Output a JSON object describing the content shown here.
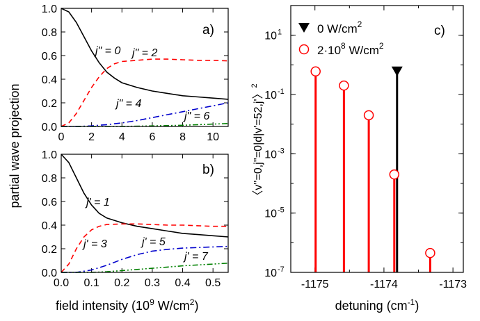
{
  "figure": {
    "ylabel_left": "partial wave projection",
    "xlabel_left": "field intensity (10",
    "xlabel_left_exp": "9",
    "xlabel_left_unit": " W/cm",
    "xlabel_left_unit_exp": "2",
    "xlabel_left_close": ")"
  },
  "colors": {
    "black": "#000000",
    "red": "#ff0000",
    "blue": "#0000cc",
    "green": "#008000"
  },
  "chart_data": [
    {
      "id": "a",
      "panel_label": "a)",
      "type": "line",
      "xlim": [
        0,
        11
      ],
      "ylim": [
        0,
        1.0
      ],
      "xticks": [
        0,
        2,
        4,
        6,
        8,
        10
      ],
      "yticks": [
        0.0,
        0.2,
        0.4,
        0.6,
        0.8,
        1.0
      ],
      "ytick_labels": [
        "0.0",
        "0.2",
        "0.4",
        "0.6",
        "0.8",
        "1.0"
      ],
      "series": [
        {
          "name": "j\" = 0",
          "style": "solid",
          "color": "#000000",
          "x": [
            0,
            0.5,
            1,
            1.5,
            2,
            2.5,
            3,
            3.5,
            4,
            5,
            6,
            7,
            8,
            9,
            10,
            11
          ],
          "y": [
            1.0,
            0.97,
            0.88,
            0.76,
            0.64,
            0.54,
            0.46,
            0.41,
            0.37,
            0.33,
            0.3,
            0.28,
            0.26,
            0.25,
            0.24,
            0.23
          ]
        },
        {
          "name": "j\" = 2",
          "style": "dash",
          "color": "#ff0000",
          "x": [
            0,
            0.5,
            1,
            1.5,
            2,
            2.5,
            3,
            3.5,
            4,
            5,
            6,
            7,
            8,
            9,
            10,
            11
          ],
          "y": [
            0.0,
            0.03,
            0.11,
            0.22,
            0.33,
            0.42,
            0.49,
            0.53,
            0.55,
            0.56,
            0.57,
            0.57,
            0.565,
            0.56,
            0.56,
            0.555
          ]
        },
        {
          "name": "j\" = 4",
          "style": "dashdot",
          "color": "#0000cc",
          "x": [
            0,
            1,
            2,
            3,
            4,
            5,
            6,
            7,
            8,
            9,
            10,
            11
          ],
          "y": [
            0.0,
            0.0,
            0.005,
            0.015,
            0.03,
            0.05,
            0.075,
            0.1,
            0.125,
            0.15,
            0.175,
            0.2
          ]
        },
        {
          "name": "j\" = 6",
          "style": "dashdotdot",
          "color": "#008000",
          "x": [
            0,
            2,
            4,
            6,
            8,
            10,
            11
          ],
          "y": [
            0.0,
            0.0,
            0.0,
            0.005,
            0.01,
            0.02,
            0.025
          ]
        }
      ]
    },
    {
      "id": "b",
      "panel_label": "b)",
      "type": "line",
      "xlim": [
        0,
        0.55
      ],
      "ylim": [
        0,
        1.0
      ],
      "xticks": [
        0.0,
        0.1,
        0.2,
        0.3,
        0.4,
        0.5
      ],
      "xtick_labels": [
        "0.0",
        "0.1",
        "0.2",
        "0.3",
        "0.4",
        "0.5"
      ],
      "yticks": [
        0.0,
        0.2,
        0.4,
        0.6,
        0.8,
        1.0
      ],
      "ytick_labels": [
        "0.0",
        "0.2",
        "0.4",
        "0.6",
        "0.8",
        "1.0"
      ],
      "series": [
        {
          "name": "j' = 1",
          "style": "solid",
          "color": "#000000",
          "x": [
            0,
            0.025,
            0.05,
            0.075,
            0.1,
            0.125,
            0.15,
            0.2,
            0.25,
            0.3,
            0.35,
            0.4,
            0.45,
            0.5,
            0.55
          ],
          "y": [
            1.0,
            0.93,
            0.8,
            0.67,
            0.57,
            0.5,
            0.46,
            0.42,
            0.39,
            0.37,
            0.35,
            0.33,
            0.32,
            0.31,
            0.3
          ]
        },
        {
          "name": "j' = 3",
          "style": "dash",
          "color": "#ff0000",
          "x": [
            0,
            0.025,
            0.05,
            0.075,
            0.1,
            0.125,
            0.15,
            0.2,
            0.25,
            0.3,
            0.35,
            0.4,
            0.45,
            0.5,
            0.55
          ],
          "y": [
            0.0,
            0.07,
            0.2,
            0.3,
            0.36,
            0.39,
            0.405,
            0.41,
            0.41,
            0.405,
            0.4,
            0.4,
            0.395,
            0.39,
            0.39
          ]
        },
        {
          "name": "j' = 5",
          "style": "dashdot",
          "color": "#0000cc",
          "x": [
            0,
            0.05,
            0.1,
            0.15,
            0.2,
            0.25,
            0.3,
            0.35,
            0.4,
            0.45,
            0.5,
            0.55
          ],
          "y": [
            0.0,
            0.0,
            0.02,
            0.06,
            0.11,
            0.15,
            0.18,
            0.195,
            0.205,
            0.21,
            0.215,
            0.22
          ]
        },
        {
          "name": "j' = 7",
          "style": "dashdotdot",
          "color": "#008000",
          "x": [
            0,
            0.1,
            0.15,
            0.2,
            0.25,
            0.3,
            0.35,
            0.4,
            0.45,
            0.5,
            0.55
          ],
          "y": [
            0.0,
            0.0,
            0.005,
            0.015,
            0.025,
            0.035,
            0.045,
            0.055,
            0.063,
            0.07,
            0.078
          ]
        }
      ]
    },
    {
      "id": "c",
      "panel_label": "c)",
      "type": "scatter",
      "xlabel": "detuning (cm",
      "xlabel_exp": "-1",
      "xlabel_close": ")",
      "ylabel": "〈v''=0,j''=0|d|v'=52,j'〉",
      "ylabel_exp": "2",
      "y_scale": "log",
      "xlim": [
        -1175.35,
        -1172.85
      ],
      "ylim": [
        1e-07,
        100
      ],
      "xticks": [
        -1175,
        -1174,
        -1173
      ],
      "xtick_labels": [
        "-1175",
        "-1174",
        "-1173"
      ],
      "yticks": [
        1e-07,
        1e-05,
        0.001,
        0.1,
        10
      ],
      "ytick_labels": [
        [
          "10",
          "-7"
        ],
        [
          "10",
          "-5"
        ],
        [
          "10",
          "-3"
        ],
        [
          "10",
          "-1"
        ],
        [
          "10",
          "1"
        ]
      ],
      "legend_position": "top-right",
      "series": [
        {
          "name": "0 W/cm",
          "name_exp": "2",
          "marker": "triangle-down",
          "color": "#000000",
          "x": [
            -1173.81
          ],
          "y": [
            0.6
          ]
        },
        {
          "name": "2·10",
          "name_mid": "8",
          "name_tail": " W/cm",
          "name_exp": "2",
          "marker": "open-circle",
          "color": "#ff0000",
          "x": [
            -1174.99,
            -1174.58,
            -1174.22,
            -1173.85,
            -1173.33
          ],
          "y": [
            0.6,
            0.2,
            0.02,
            0.0002,
            4.5e-07
          ]
        }
      ]
    }
  ]
}
